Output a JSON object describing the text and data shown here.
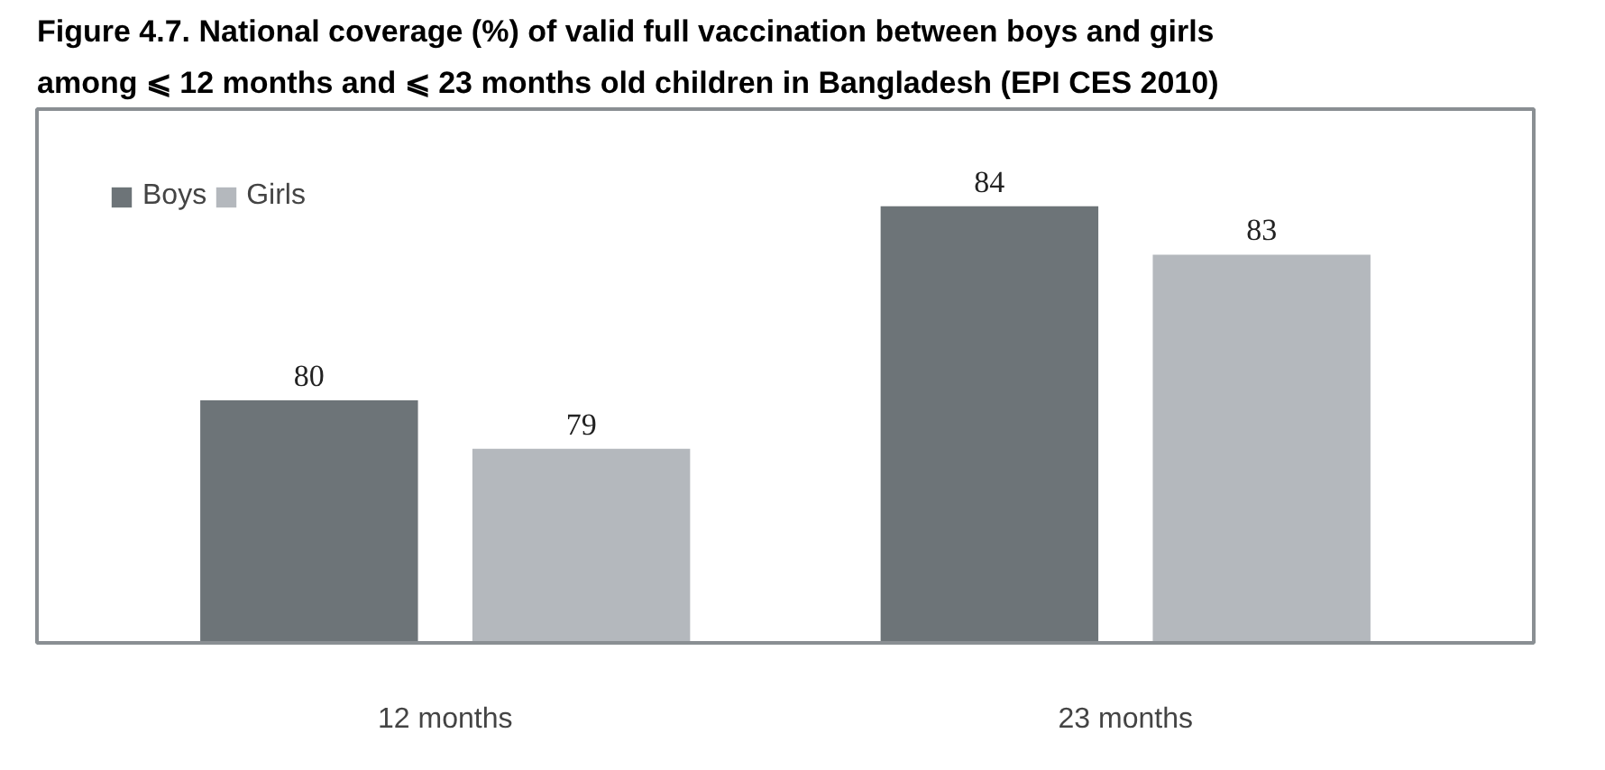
{
  "chart_data": {
    "type": "bar",
    "title": "Figure 4.7. National coverage (%) of valid full vaccination between boys and girls among ⩽ 12 months and ⩽ 23 months old children in Bangladesh (EPI CES 2010)",
    "categories": [
      "12 months",
      "23 months"
    ],
    "series": [
      {
        "name": "Boys",
        "color": "#6d7478",
        "values": [
          80,
          84
        ]
      },
      {
        "name": "Girls",
        "color": "#b4b8bd",
        "values": [
          79,
          83
        ]
      }
    ],
    "ylim": [
      75,
      86
    ],
    "tick_labels": "x",
    "data_labels": true,
    "legend": "top left",
    "grid": false
  }
}
